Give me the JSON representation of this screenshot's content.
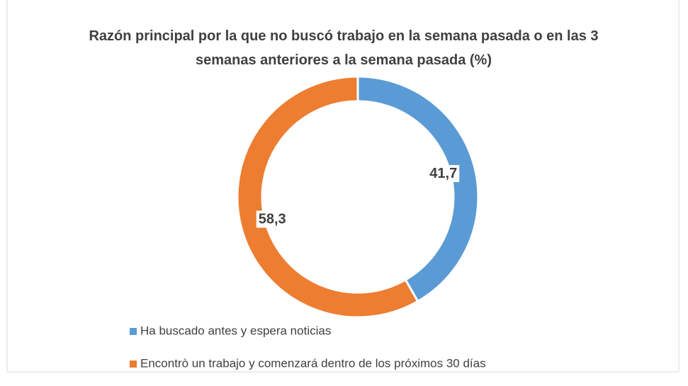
{
  "chart_data": {
    "type": "donut",
    "title": "Razón principal por la que no buscó trabajo en la semana pasada o en las 3 semanas anteriores a la semana pasada (%)",
    "categories": [
      "Ha buscado antes y espera noticias",
      "Encontrò un trabajo y comenzará dentro de los próximos 30 días"
    ],
    "values": [
      41.7,
      58.3
    ],
    "value_labels": [
      "41,7",
      "58,3"
    ],
    "colors": [
      "#5b9bd5",
      "#ed7d31"
    ],
    "legend": "bottom"
  }
}
